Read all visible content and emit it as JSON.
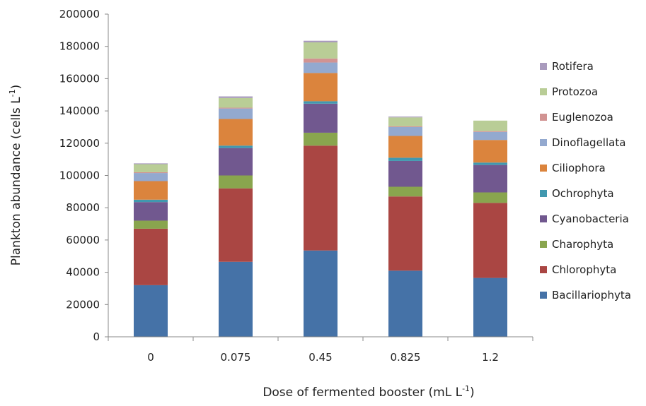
{
  "chart_data": {
    "type": "bar",
    "stacked": true,
    "title": "",
    "xlabel": "Dose of fermented booster (mL L",
    "xlabel_sup": "-1",
    "xlabel_end": ")",
    "ylabel": "Plankton abundance (cells L",
    "ylabel_sup": "-1",
    "ylabel_end": ")",
    "ylim": [
      0,
      200000
    ],
    "yticks": [
      "0",
      "20000",
      "40000",
      "60000",
      "80000",
      "100000",
      "120000",
      "140000",
      "160000",
      "180000",
      "200000"
    ],
    "categories": [
      "0",
      "0.075",
      "0.45",
      "0.825",
      "1.2"
    ],
    "grid": false,
    "legend_position": "right",
    "series": [
      {
        "name": "Bacillariophyta",
        "color": "#4572a7",
        "values": [
          32000,
          46500,
          53500,
          41000,
          36500
        ]
      },
      {
        "name": "Chlorophyta",
        "color": "#aa4643",
        "values": [
          35000,
          45500,
          65000,
          46000,
          46500
        ]
      },
      {
        "name": "Charophyta",
        "color": "#89a54e",
        "values": [
          5000,
          8000,
          8000,
          6000,
          6500
        ]
      },
      {
        "name": "Cyanobacteria",
        "color": "#71588f",
        "values": [
          11500,
          17000,
          18000,
          16000,
          17000
        ]
      },
      {
        "name": "Ochrophyta",
        "color": "#4198af",
        "values": [
          1500,
          1500,
          1500,
          2000,
          1500
        ]
      },
      {
        "name": "Ciliophora",
        "color": "#db843d",
        "values": [
          11500,
          16500,
          17500,
          13500,
          14000
        ]
      },
      {
        "name": "Dinoflagellata",
        "color": "#93a9cf",
        "values": [
          5000,
          6500,
          6500,
          5500,
          5000
        ]
      },
      {
        "name": "Euglenozoa",
        "color": "#d19392",
        "values": [
          500,
          500,
          2500,
          500,
          500
        ]
      },
      {
        "name": "Protozoa",
        "color": "#b9cd96",
        "values": [
          5000,
          6000,
          10000,
          5500,
          6500
        ]
      },
      {
        "name": "Rotifera",
        "color": "#a99bbd",
        "values": [
          500,
          1000,
          1000,
          500,
          0
        ]
      }
    ]
  }
}
